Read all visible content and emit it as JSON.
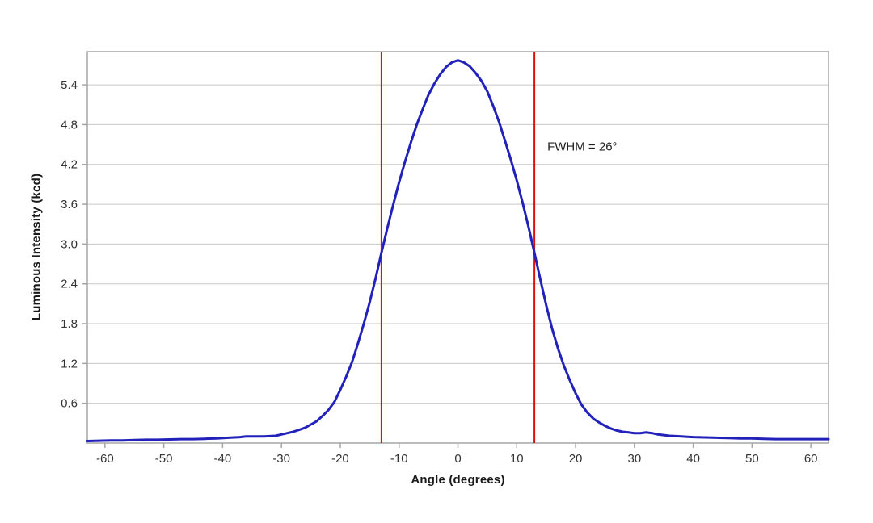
{
  "chart_data": {
    "type": "line",
    "title": "",
    "xlabel": "Angle (degrees)",
    "ylabel": "Luminous Intensity (kcd)",
    "xlim": [
      -63,
      63
    ],
    "ylim": [
      0,
      5.9
    ],
    "x_ticks": [
      -60,
      -50,
      -40,
      -30,
      -20,
      -10,
      0,
      10,
      20,
      30,
      40,
      50,
      60
    ],
    "y_ticks": [
      0.6,
      1.2,
      1.8,
      2.4,
      3.0,
      3.6,
      4.2,
      4.8,
      5.4
    ],
    "grid": "horizontal",
    "legend": "none",
    "series": [
      {
        "name": "luminous-intensity-curve",
        "color": "#2222bb",
        "points": [
          [
            -63,
            0.03
          ],
          [
            -61,
            0.035
          ],
          [
            -59,
            0.04
          ],
          [
            -57,
            0.04
          ],
          [
            -55,
            0.045
          ],
          [
            -53,
            0.05
          ],
          [
            -51,
            0.05
          ],
          [
            -49,
            0.055
          ],
          [
            -47,
            0.06
          ],
          [
            -45,
            0.06
          ],
          [
            -43,
            0.065
          ],
          [
            -41,
            0.07
          ],
          [
            -39,
            0.08
          ],
          [
            -38,
            0.085
          ],
          [
            -37,
            0.09
          ],
          [
            -36,
            0.1
          ],
          [
            -35,
            0.1
          ],
          [
            -34,
            0.1
          ],
          [
            -33,
            0.1
          ],
          [
            -32,
            0.105
          ],
          [
            -31,
            0.11
          ],
          [
            -30,
            0.13
          ],
          [
            -29,
            0.15
          ],
          [
            -28,
            0.17
          ],
          [
            -27,
            0.2
          ],
          [
            -26,
            0.23
          ],
          [
            -25,
            0.28
          ],
          [
            -24,
            0.33
          ],
          [
            -23,
            0.41
          ],
          [
            -22,
            0.5
          ],
          [
            -21,
            0.62
          ],
          [
            -20,
            0.8
          ],
          [
            -19,
            1.0
          ],
          [
            -18,
            1.22
          ],
          [
            -17,
            1.5
          ],
          [
            -16,
            1.8
          ],
          [
            -15,
            2.12
          ],
          [
            -14,
            2.48
          ],
          [
            -13,
            2.87
          ],
          [
            -12,
            3.24
          ],
          [
            -11,
            3.59
          ],
          [
            -10,
            3.93
          ],
          [
            -9,
            4.24
          ],
          [
            -8,
            4.53
          ],
          [
            -7,
            4.8
          ],
          [
            -6,
            5.03
          ],
          [
            -5,
            5.25
          ],
          [
            -4,
            5.42
          ],
          [
            -3,
            5.56
          ],
          [
            -2,
            5.67
          ],
          [
            -1,
            5.74
          ],
          [
            0,
            5.77
          ],
          [
            1,
            5.74
          ],
          [
            2,
            5.68
          ],
          [
            3,
            5.58
          ],
          [
            4,
            5.46
          ],
          [
            5,
            5.3
          ],
          [
            6,
            5.08
          ],
          [
            7,
            4.84
          ],
          [
            8,
            4.56
          ],
          [
            9,
            4.27
          ],
          [
            10,
            3.96
          ],
          [
            11,
            3.62
          ],
          [
            12,
            3.26
          ],
          [
            13,
            2.87
          ],
          [
            14,
            2.47
          ],
          [
            15,
            2.08
          ],
          [
            16,
            1.73
          ],
          [
            17,
            1.43
          ],
          [
            18,
            1.17
          ],
          [
            19,
            0.95
          ],
          [
            20,
            0.75
          ],
          [
            21,
            0.58
          ],
          [
            22,
            0.46
          ],
          [
            23,
            0.37
          ],
          [
            24,
            0.31
          ],
          [
            25,
            0.26
          ],
          [
            26,
            0.22
          ],
          [
            27,
            0.19
          ],
          [
            28,
            0.17
          ],
          [
            29,
            0.16
          ],
          [
            30,
            0.15
          ],
          [
            31,
            0.15
          ],
          [
            32,
            0.16
          ],
          [
            33,
            0.15
          ],
          [
            34,
            0.13
          ],
          [
            35,
            0.12
          ],
          [
            36,
            0.11
          ],
          [
            37,
            0.105
          ],
          [
            38,
            0.1
          ],
          [
            39,
            0.095
          ],
          [
            40,
            0.09
          ],
          [
            42,
            0.085
          ],
          [
            44,
            0.08
          ],
          [
            46,
            0.075
          ],
          [
            48,
            0.07
          ],
          [
            50,
            0.07
          ],
          [
            52,
            0.065
          ],
          [
            54,
            0.06
          ],
          [
            56,
            0.06
          ],
          [
            58,
            0.06
          ],
          [
            60,
            0.06
          ],
          [
            62,
            0.06
          ],
          [
            63,
            0.06
          ]
        ]
      }
    ],
    "reference_lines": [
      {
        "axis": "x",
        "value": -13,
        "color": "#dd1111",
        "name": "fwhm-left-line"
      },
      {
        "axis": "x",
        "value": 13,
        "color": "#dd1111",
        "name": "fwhm-right-line"
      }
    ],
    "annotations": [
      {
        "text": "FWHM = 26°",
        "x": 15.2,
        "y": 4.47,
        "anchor": "start"
      }
    ],
    "colors": {
      "grid": "#c8c8c8",
      "axis_border": "#a6a6a6",
      "tick": "#a6a6a6",
      "tick_label": "#333333",
      "axis_title": "#1a1a1a",
      "annotation": "#222222",
      "background": "#ffffff"
    }
  }
}
